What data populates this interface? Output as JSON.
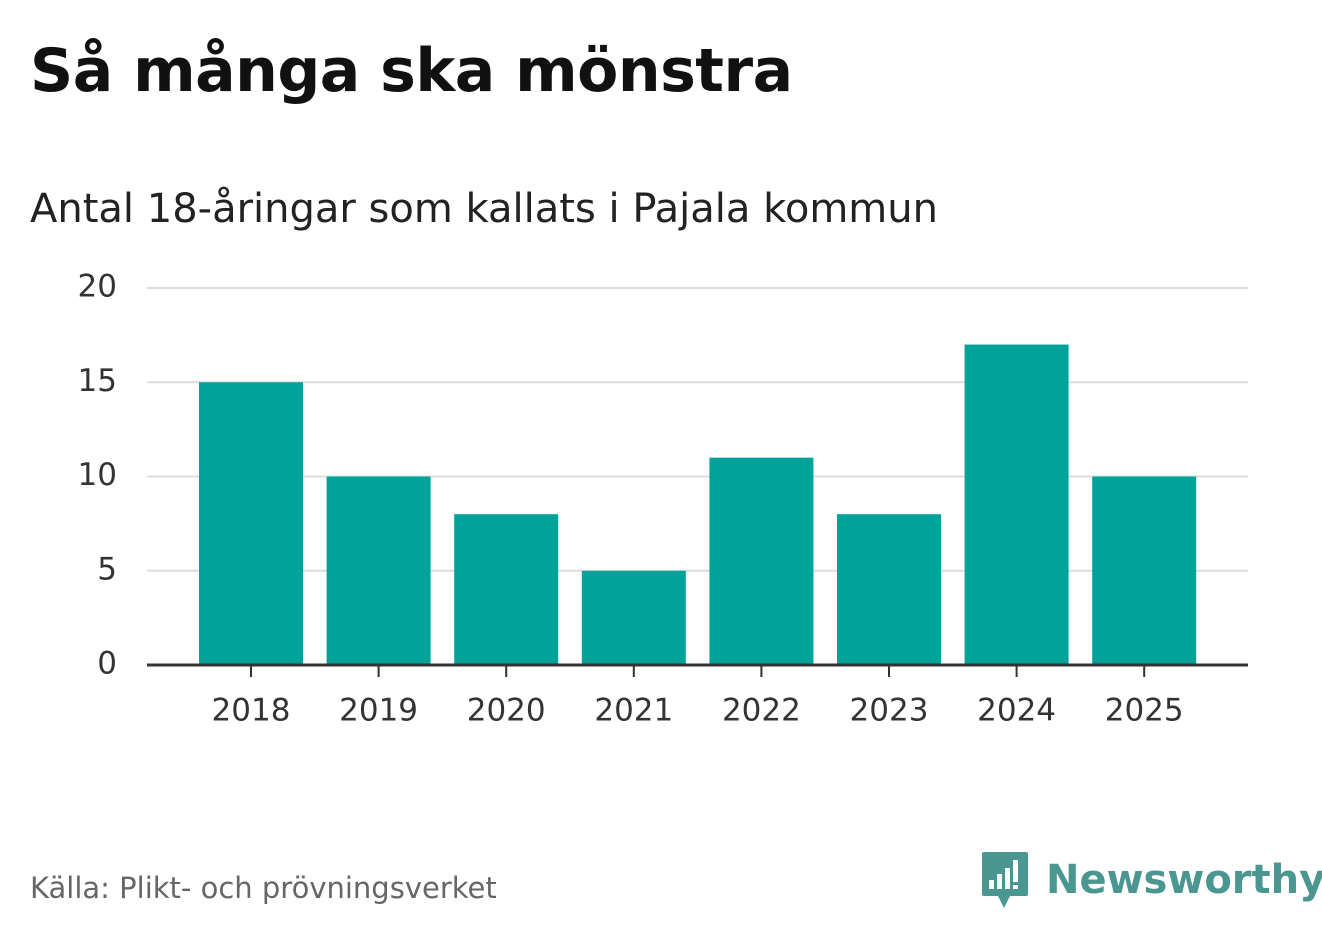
{
  "title": "Så många ska mönstra",
  "subtitle": "Antal 18-åringar som kallats i Pajala kommun",
  "source": "Källa: Plikt- och prövningsverket",
  "brand": {
    "name": "Newsworthy",
    "color": "#4a9690",
    "icon": "newsworthy-speech-bubble-bar-chart-icon"
  },
  "colors": {
    "bar": "#00a39a",
    "grid": "#dcdcdc",
    "axis": "#333333"
  },
  "chart_data": {
    "type": "bar",
    "categories": [
      "2018",
      "2019",
      "2020",
      "2021",
      "2022",
      "2023",
      "2024",
      "2025"
    ],
    "values": [
      15,
      10,
      8,
      5,
      11,
      8,
      17,
      10
    ],
    "yticks": [
      "0",
      "5",
      "10",
      "15",
      "20"
    ],
    "ylim": [
      0,
      20
    ],
    "grid": true,
    "legend": "none"
  }
}
